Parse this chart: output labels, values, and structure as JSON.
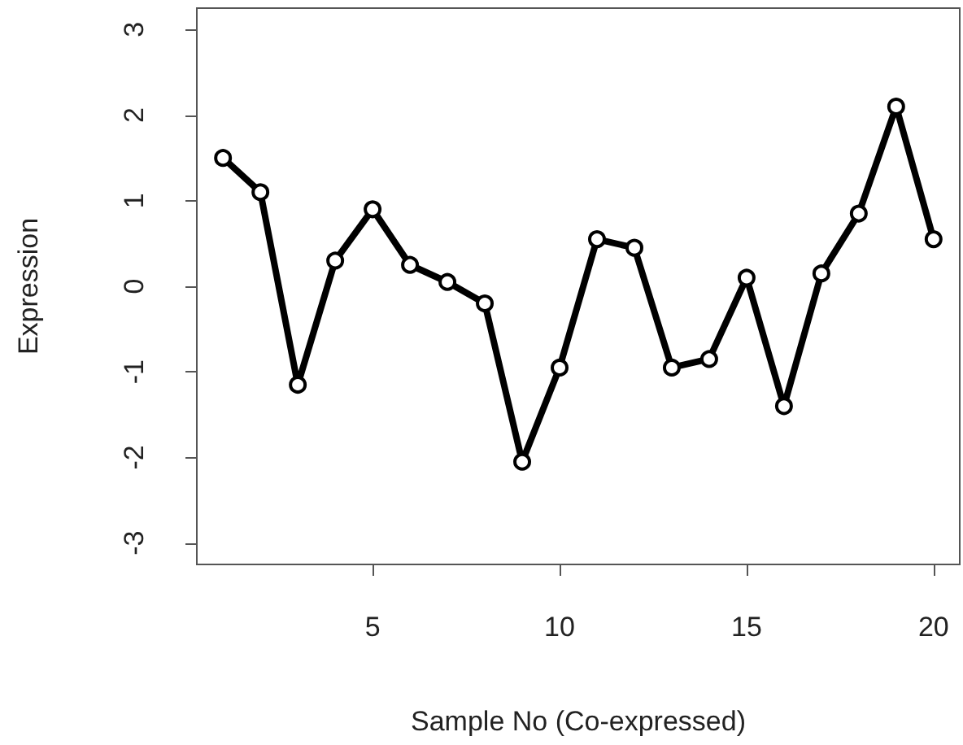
{
  "chart_data": {
    "type": "line",
    "xlabel": "Sample No (Co-expressed)",
    "ylabel": "Expression",
    "x": [
      1,
      2,
      3,
      4,
      5,
      6,
      7,
      8,
      9,
      10,
      11,
      12,
      13,
      14,
      15,
      16,
      17,
      18,
      19,
      20
    ],
    "series": [
      {
        "color": "#000000",
        "values": [
          1.5,
          1.1,
          -1.15,
          0.3,
          0.9,
          0.25,
          0.05,
          -0.2,
          -2.05,
          -0.95,
          0.55,
          0.45,
          -0.95,
          -0.85,
          0.1,
          -1.4,
          0.15,
          0.85,
          2.1,
          0.55
        ]
      }
    ],
    "xlim": [
      0.3,
      20.7
    ],
    "xticks": [
      5,
      10,
      15,
      20
    ],
    "ylim": [
      -3.25,
      3.25
    ],
    "yticks": [
      -3,
      -2,
      -1,
      0,
      1,
      2,
      3
    ],
    "marker": "circle",
    "line_style": "solid",
    "grid": false
  }
}
